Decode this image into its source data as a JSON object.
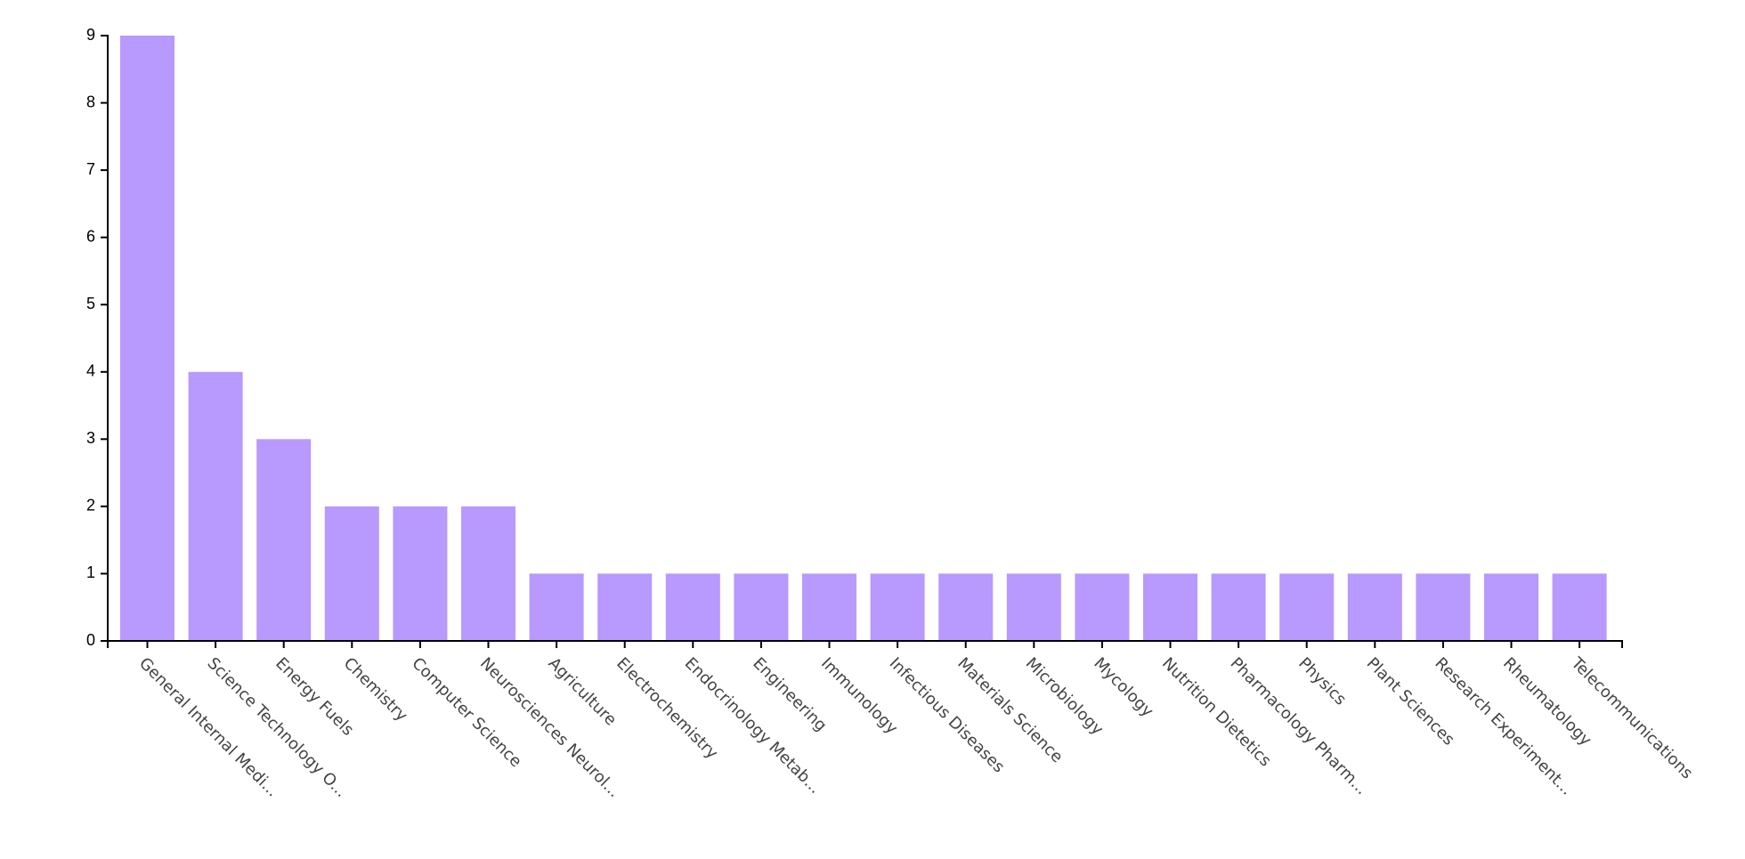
{
  "chart_data": {
    "type": "bar",
    "categories": [
      "General Internal Medi...",
      "Science Technology O...",
      "Energy Fuels",
      "Chemistry",
      "Computer Science",
      "Neurosciences Neurol...",
      "Agriculture",
      "Electrochemistry",
      "Endocrinology Metab...",
      "Engineering",
      "Immunology",
      "Infectious Diseases",
      "Materials Science",
      "Microbiology",
      "Mycology",
      "Nutrition Dietetics",
      "Pharmacology Pharm...",
      "Physics",
      "Plant Sciences",
      "Research Experiment...",
      "Rheumatology",
      "Telecommunications"
    ],
    "values": [
      9,
      4,
      3,
      2,
      2,
      2,
      1,
      1,
      1,
      1,
      1,
      1,
      1,
      1,
      1,
      1,
      1,
      1,
      1,
      1,
      1,
      1
    ],
    "ylim": [
      0,
      9
    ],
    "y_ticks": [
      0,
      1,
      2,
      3,
      4,
      5,
      6,
      7,
      8,
      9
    ],
    "grid": false,
    "legend": "none",
    "bar_color": "#b899fd",
    "axis_color": "#000000",
    "x_label_color": "#444444"
  }
}
